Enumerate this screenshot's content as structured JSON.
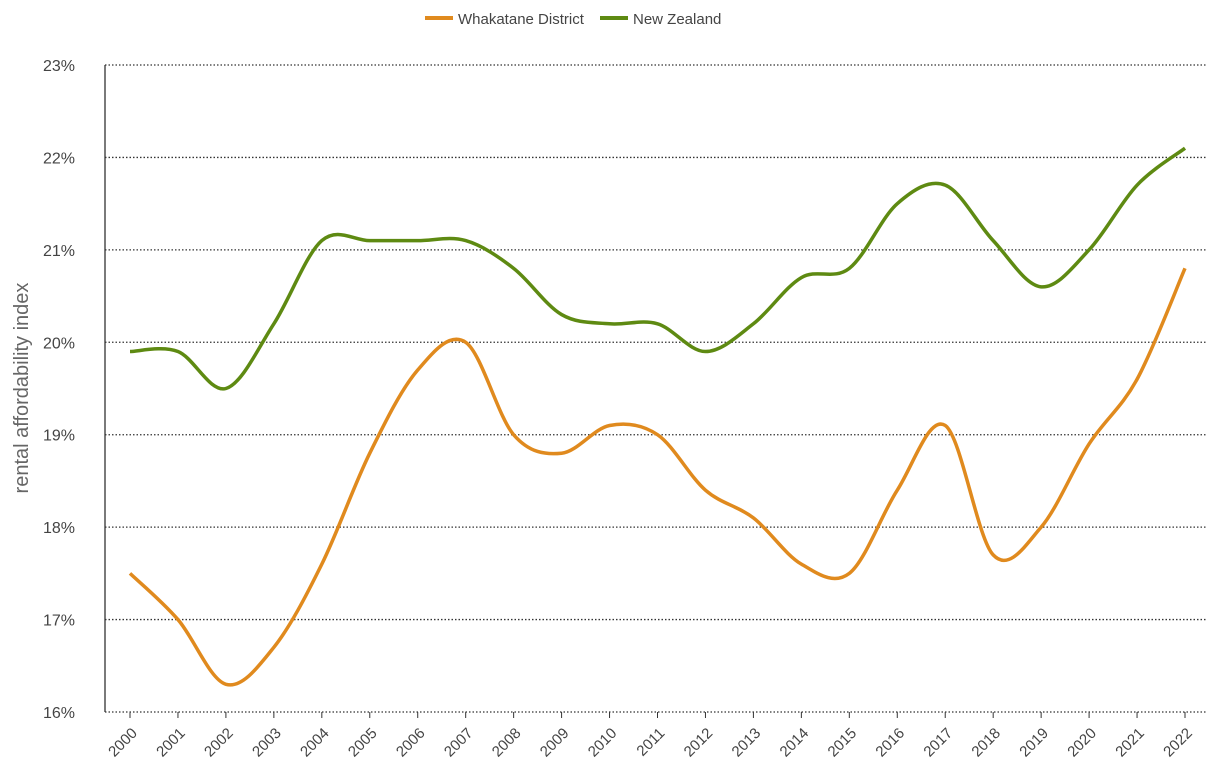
{
  "chart_data": {
    "type": "line",
    "y_label": "rental affordability index",
    "categories": [
      "2000",
      "2001",
      "2002",
      "2003",
      "2004",
      "2005",
      "2006",
      "2007",
      "2008",
      "2009",
      "2010",
      "2011",
      "2012",
      "2013",
      "2014",
      "2015",
      "2016",
      "2017",
      "2018",
      "2019",
      "2020",
      "2021",
      "2022"
    ],
    "series": [
      {
        "name": "Whakatane District",
        "color": "#e08a1e",
        "values": [
          17.5,
          17.0,
          16.3,
          16.7,
          17.6,
          18.8,
          19.7,
          20.0,
          19.0,
          18.8,
          19.1,
          19.0,
          18.4,
          18.1,
          17.6,
          17.5,
          18.4,
          19.1,
          17.7,
          18.0,
          18.9,
          19.6,
          20.8
        ]
      },
      {
        "name": "New Zealand",
        "color": "#5e8a12",
        "values": [
          19.9,
          19.9,
          19.5,
          20.2,
          21.1,
          21.1,
          21.1,
          21.1,
          20.8,
          20.3,
          20.2,
          20.2,
          19.9,
          20.2,
          20.7,
          20.8,
          21.5,
          21.7,
          21.1,
          20.6,
          21.0,
          21.7,
          22.1
        ]
      }
    ],
    "ylim": [
      16,
      23
    ],
    "yticks": [
      {
        "value": 16,
        "label": "16%"
      },
      {
        "value": 17,
        "label": "17%"
      },
      {
        "value": 18,
        "label": "18%"
      },
      {
        "value": 19,
        "label": "19%"
      },
      {
        "value": 20,
        "label": "20%"
      },
      {
        "value": 21,
        "label": "21%"
      },
      {
        "value": 22,
        "label": "22%"
      },
      {
        "value": 23,
        "label": "23%"
      }
    ],
    "grid": true,
    "legend": "top"
  }
}
